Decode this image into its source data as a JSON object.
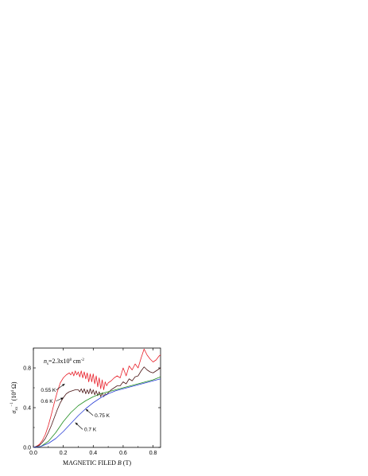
{
  "chart_data": {
    "type": "line",
    "xlabel": {
      "prefix": "MAGNETIC FILED ",
      "var": "B",
      "suffix": " (T)"
    },
    "ylabel": {
      "var": "σ",
      "sub": "xx",
      "sup": "−1",
      "suffix": " (10",
      "exp": "4",
      "unit": " Ω)"
    },
    "xlim": [
      0,
      0.85
    ],
    "ylim": [
      0,
      1.0
    ],
    "xticks": [
      0,
      0.2,
      0.4,
      0.6,
      0.8
    ],
    "xtick_labels": [
      "0.0",
      "0.2",
      "0.4",
      "0.6",
      "0.8"
    ],
    "yticks": [
      0,
      0.4,
      0.8
    ],
    "ytick_labels": [
      "0.0",
      "0.4",
      "0.8"
    ],
    "density_label": {
      "var": "n",
      "sub": "s",
      "text": "=2.3x10",
      "exp": "8",
      "unit": " cm",
      "unit_exp": "-2"
    },
    "series": [
      {
        "name": "0.55 K",
        "color": "#e8202a",
        "x": [
          0,
          0.02,
          0.04,
          0.06,
          0.08,
          0.1,
          0.12,
          0.14,
          0.16,
          0.18,
          0.2,
          0.22,
          0.24,
          0.25,
          0.26,
          0.27,
          0.28,
          0.29,
          0.3,
          0.31,
          0.32,
          0.33,
          0.34,
          0.35,
          0.36,
          0.37,
          0.38,
          0.39,
          0.4,
          0.41,
          0.42,
          0.43,
          0.44,
          0.45,
          0.46,
          0.47,
          0.48,
          0.49,
          0.5,
          0.52,
          0.54,
          0.56,
          0.58,
          0.6,
          0.62,
          0.64,
          0.66,
          0.68,
          0.7,
          0.72,
          0.74,
          0.76,
          0.78,
          0.8,
          0.82,
          0.84,
          0.85
        ],
        "y": [
          0,
          0.01,
          0.03,
          0.07,
          0.13,
          0.22,
          0.33,
          0.45,
          0.56,
          0.65,
          0.7,
          0.73,
          0.75,
          0.73,
          0.76,
          0.72,
          0.77,
          0.73,
          0.76,
          0.71,
          0.77,
          0.7,
          0.76,
          0.69,
          0.75,
          0.66,
          0.74,
          0.66,
          0.74,
          0.64,
          0.72,
          0.61,
          0.7,
          0.59,
          0.68,
          0.58,
          0.66,
          0.62,
          0.65,
          0.67,
          0.7,
          0.72,
          0.7,
          0.8,
          0.72,
          0.82,
          0.78,
          0.84,
          0.8,
          0.9,
          0.99,
          0.93,
          0.89,
          0.86,
          0.88,
          0.92,
          0.93
        ]
      },
      {
        "name": "0.6 K",
        "color": "#4a1414",
        "x": [
          0,
          0.02,
          0.04,
          0.06,
          0.08,
          0.1,
          0.12,
          0.14,
          0.16,
          0.18,
          0.2,
          0.22,
          0.24,
          0.26,
          0.28,
          0.3,
          0.31,
          0.32,
          0.33,
          0.34,
          0.35,
          0.36,
          0.37,
          0.38,
          0.39,
          0.4,
          0.41,
          0.42,
          0.43,
          0.44,
          0.45,
          0.46,
          0.47,
          0.48,
          0.49,
          0.5,
          0.52,
          0.54,
          0.56,
          0.58,
          0.6,
          0.62,
          0.64,
          0.66,
          0.68,
          0.7,
          0.72,
          0.74,
          0.76,
          0.78,
          0.8,
          0.82,
          0.84,
          0.85
        ],
        "y": [
          0,
          0.01,
          0.02,
          0.05,
          0.09,
          0.15,
          0.22,
          0.3,
          0.38,
          0.45,
          0.5,
          0.54,
          0.56,
          0.57,
          0.58,
          0.58,
          0.56,
          0.59,
          0.55,
          0.59,
          0.54,
          0.58,
          0.54,
          0.59,
          0.54,
          0.58,
          0.53,
          0.57,
          0.52,
          0.56,
          0.51,
          0.55,
          0.51,
          0.54,
          0.53,
          0.55,
          0.58,
          0.6,
          0.62,
          0.62,
          0.66,
          0.64,
          0.69,
          0.67,
          0.71,
          0.72,
          0.77,
          0.81,
          0.78,
          0.76,
          0.75,
          0.77,
          0.79,
          0.8
        ]
      },
      {
        "name": "0.75 K",
        "color": "#1d8c1d",
        "x": [
          0,
          0.05,
          0.1,
          0.15,
          0.2,
          0.25,
          0.3,
          0.35,
          0.4,
          0.45,
          0.5,
          0.55,
          0.6,
          0.65,
          0.7,
          0.75,
          0.8,
          0.85
        ],
        "y": [
          0,
          0.01,
          0.06,
          0.15,
          0.26,
          0.35,
          0.42,
          0.47,
          0.51,
          0.54,
          0.56,
          0.58,
          0.6,
          0.62,
          0.64,
          0.66,
          0.68,
          0.71
        ]
      },
      {
        "name": "0.7 K",
        "color": "#2a3fd6",
        "x": [
          0,
          0.05,
          0.1,
          0.15,
          0.2,
          0.25,
          0.3,
          0.35,
          0.4,
          0.45,
          0.5,
          0.55,
          0.6,
          0.65,
          0.7,
          0.75,
          0.8,
          0.85
        ],
        "y": [
          0,
          0.01,
          0.04,
          0.09,
          0.16,
          0.24,
          0.32,
          0.39,
          0.45,
          0.5,
          0.54,
          0.57,
          0.59,
          0.61,
          0.63,
          0.65,
          0.67,
          0.69
        ]
      }
    ],
    "annotations": [
      {
        "label": "0.55 K",
        "series": 0,
        "text_x": 0.05,
        "text_y": 0.56,
        "arrow_to_x": 0.21,
        "arrow_to_y": 0.64
      },
      {
        "label": "0.6 K",
        "series": 1,
        "text_x": 0.05,
        "text_y": 0.45,
        "arrow_to_x": 0.2,
        "arrow_to_y": 0.5
      },
      {
        "label": "0.75 K",
        "series": 2,
        "text_x": 0.41,
        "text_y": 0.305,
        "arrow_to_x": 0.35,
        "arrow_to_y": 0.385
      },
      {
        "label": "0.7 K",
        "series": 3,
        "text_x": 0.34,
        "text_y": 0.165,
        "arrow_to_x": 0.28,
        "arrow_to_y": 0.25
      }
    ]
  }
}
